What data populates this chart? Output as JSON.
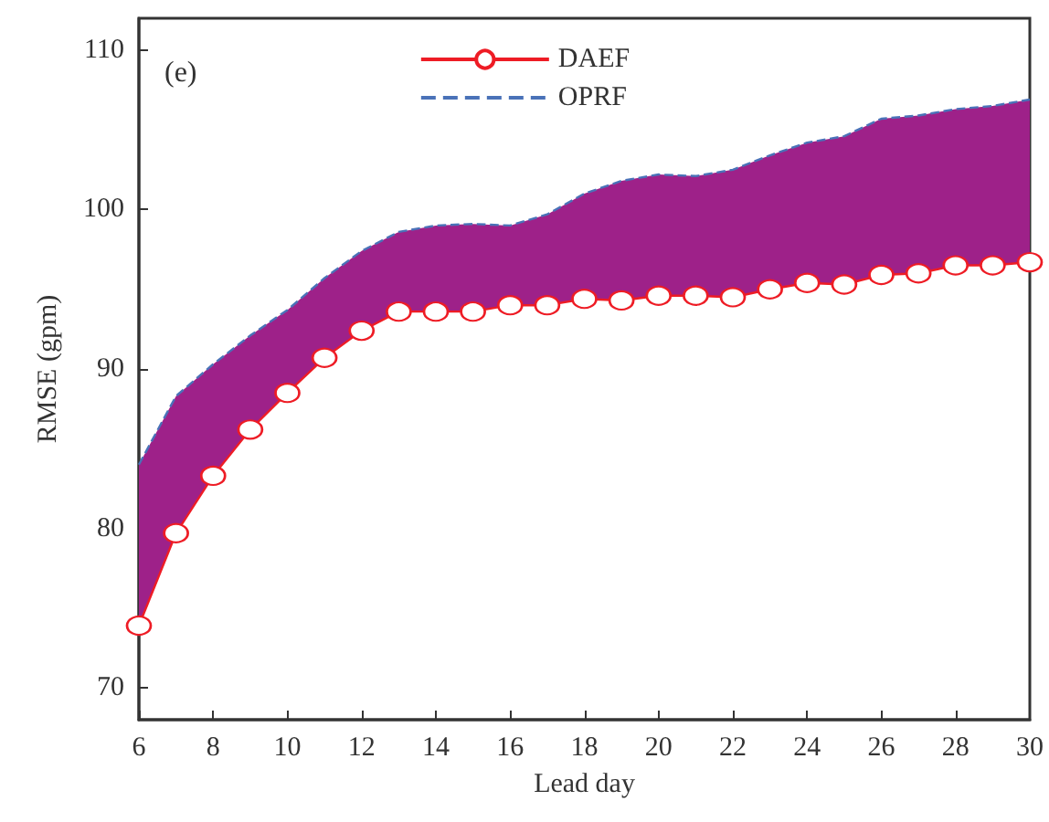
{
  "chart_data": {
    "type": "line",
    "xlabel": "Lead day",
    "ylabel": "RMSE (gpm)",
    "annotations": [
      "(e)"
    ],
    "x": [
      6,
      7,
      8,
      9,
      10,
      11,
      12,
      13,
      14,
      15,
      16,
      17,
      18,
      19,
      20,
      21,
      22,
      23,
      24,
      25,
      26,
      27,
      28,
      29,
      30
    ],
    "xlim": [
      6,
      30
    ],
    "xticks": [
      6,
      8,
      10,
      12,
      14,
      16,
      18,
      20,
      22,
      24,
      26,
      28,
      30
    ],
    "ylim": [
      68,
      112
    ],
    "yticks": [
      70,
      80,
      90,
      100,
      110
    ],
    "grid": false,
    "legend": "top",
    "series": [
      {
        "name": "DAEF",
        "color": "#ee1c25",
        "marker": "circle",
        "line_style": "solid",
        "values": [
          73.9,
          79.7,
          83.3,
          86.2,
          88.5,
          90.7,
          92.4,
          93.6,
          93.6,
          93.6,
          94.0,
          94.0,
          94.4,
          94.3,
          94.6,
          94.6,
          94.5,
          95.0,
          95.4,
          95.3,
          95.9,
          96.0,
          96.5,
          96.5,
          96.7
        ]
      },
      {
        "name": "OPRF",
        "color": "#4a72b8",
        "marker": "none",
        "line_style": "dashed",
        "values": [
          84.0,
          88.3,
          90.3,
          92.1,
          93.7,
          95.7,
          97.4,
          98.6,
          99.0,
          99.1,
          99.0,
          99.7,
          101.0,
          101.8,
          102.2,
          102.1,
          102.5,
          103.4,
          104.2,
          104.6,
          105.7,
          105.9,
          106.3,
          106.5,
          106.9
        ]
      },
      {
        "type": "area",
        "color": "#9e2189",
        "values": [
          84.0,
          88.3,
          90.3,
          92.1,
          93.7,
          95.7,
          97.4,
          98.6,
          99.0,
          99.1,
          99.0,
          99.7,
          101.0,
          101.8,
          102.2,
          102.1,
          102.5,
          103.4,
          104.2,
          104.6,
          105.7,
          105.9,
          106.3,
          106.5,
          106.9
        ]
      }
    ]
  }
}
